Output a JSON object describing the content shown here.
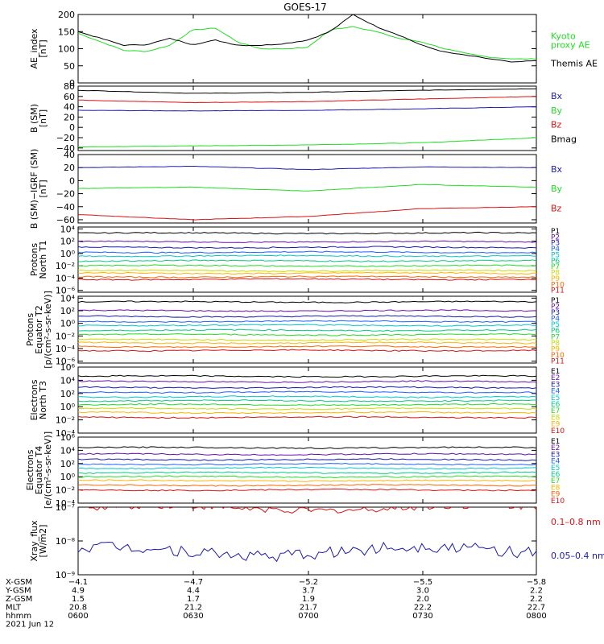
{
  "title": "GOES-17",
  "chart_data": [
    {
      "type": "line",
      "ylabel": "AE_index\n[nT]",
      "ylim": [
        0,
        200
      ],
      "yticks": [
        {
          "v": 0,
          "t": "0"
        },
        {
          "v": 50,
          "t": "50"
        },
        {
          "v": 100,
          "t": "100"
        },
        {
          "v": 150,
          "t": "150"
        },
        {
          "v": 200,
          "t": "200"
        }
      ],
      "series": [
        {
          "name": "Kyoto\nproxy AE",
          "color": "#22dd22",
          "x": [
            0,
            0.05,
            0.1,
            0.15,
            0.2,
            0.25,
            0.3,
            0.35,
            0.4,
            0.45,
            0.5,
            0.55,
            0.6,
            0.65,
            0.7,
            0.75,
            0.8,
            0.85,
            0.9,
            0.95,
            1.0
          ],
          "values": [
            145,
            120,
            95,
            92,
            110,
            155,
            160,
            118,
            100,
            100,
            103,
            155,
            165,
            150,
            130,
            120,
            100,
            85,
            75,
            70,
            70
          ]
        },
        {
          "name": "Themis AE",
          "color": "#000000",
          "x": [
            0,
            0.05,
            0.1,
            0.15,
            0.2,
            0.25,
            0.3,
            0.35,
            0.4,
            0.45,
            0.5,
            0.55,
            0.6,
            0.65,
            0.7,
            0.75,
            0.8,
            0.85,
            0.9,
            0.95,
            1.0
          ],
          "values": [
            150,
            130,
            110,
            112,
            130,
            112,
            125,
            110,
            110,
            115,
            125,
            150,
            200,
            165,
            140,
            110,
            90,
            80,
            70,
            60,
            66
          ]
        }
      ]
    },
    {
      "type": "line",
      "ylabel": "B (SM)\n[nT]",
      "ylim": [
        -45,
        80
      ],
      "yticks": [
        {
          "v": -40,
          "t": "−40"
        },
        {
          "v": -20,
          "t": "−20"
        },
        {
          "v": 0,
          "t": "0"
        },
        {
          "v": 20,
          "t": "20"
        },
        {
          "v": 40,
          "t": "40"
        },
        {
          "v": 60,
          "t": "60"
        },
        {
          "v": 80,
          "t": "80"
        }
      ],
      "series": [
        {
          "name": "Bx",
          "color": "#1a1ab0",
          "x": [
            0,
            0.25,
            0.5,
            0.75,
            1.0
          ],
          "values": [
            33,
            32,
            33,
            36,
            40
          ]
        },
        {
          "name": "By",
          "color": "#22dd22",
          "x": [
            0,
            0.25,
            0.5,
            0.75,
            1.0
          ],
          "values": [
            -38,
            -36,
            -34,
            -30,
            -20
          ]
        },
        {
          "name": "Bz",
          "color": "#dd1111",
          "x": [
            0,
            0.25,
            0.5,
            0.75,
            1.0
          ],
          "values": [
            53,
            48,
            50,
            55,
            60
          ]
        },
        {
          "name": "Bmag",
          "color": "#000000",
          "x": [
            0,
            0.25,
            0.5,
            0.75,
            1.0
          ],
          "values": [
            72,
            66,
            68,
            72,
            75
          ]
        }
      ]
    },
    {
      "type": "line",
      "ylabel": "B (SM)−IGRF (SM)\n[nT]",
      "ylim": [
        -65,
        40
      ],
      "yticks": [
        {
          "v": -60,
          "t": "−60"
        },
        {
          "v": -40,
          "t": "−40"
        },
        {
          "v": -20,
          "t": "−20"
        },
        {
          "v": 0,
          "t": "0"
        },
        {
          "v": 20,
          "t": "20"
        },
        {
          "v": 40,
          "t": "40"
        }
      ],
      "series": [
        {
          "name": "Bx",
          "color": "#1a1ab0",
          "x": [
            0,
            0.25,
            0.5,
            0.75,
            1.0
          ],
          "values": [
            20,
            22,
            17,
            21,
            20
          ]
        },
        {
          "name": "By",
          "color": "#22dd22",
          "x": [
            0,
            0.25,
            0.5,
            0.75,
            1.0
          ],
          "values": [
            -12,
            -10,
            -16,
            -6,
            -10
          ]
        },
        {
          "name": "Bz",
          "color": "#dd1111",
          "x": [
            0,
            0.25,
            0.5,
            0.75,
            1.0
          ],
          "values": [
            -52,
            -60,
            -55,
            -43,
            -40
          ]
        }
      ]
    },
    {
      "type": "line",
      "log": true,
      "ylabel": "Protons\nNorth T1",
      "ylim": [
        -6.3,
        4.3
      ],
      "yticks": [
        {
          "v": 4,
          "t": "10⁴"
        },
        {
          "v": 2,
          "t": "10²"
        },
        {
          "v": 0,
          "t": "10⁰"
        },
        {
          "v": -2,
          "t": "10⁻²"
        },
        {
          "v": -4,
          "t": "10⁻⁴"
        },
        {
          "v": -6,
          "t": "10⁻⁶"
        }
      ],
      "series": [
        {
          "name": "P1",
          "color": "#000000",
          "level": 3.3
        },
        {
          "name": "P2",
          "color": "#6a0dad",
          "level": 1.9
        },
        {
          "name": "P3",
          "color": "#1a1ab0",
          "level": 1.0
        },
        {
          "name": "P4",
          "color": "#1f5fff",
          "level": 0.2
        },
        {
          "name": "P5",
          "color": "#00c8c8",
          "level": -0.4
        },
        {
          "name": "P6",
          "color": "#00cc88",
          "level": -1.2
        },
        {
          "name": "P7",
          "color": "#22dd22",
          "level": -2.0
        },
        {
          "name": "P8",
          "color": "#c8dc00",
          "level": -2.8
        },
        {
          "name": "P9",
          "color": "#ffb400",
          "level": -3.2
        },
        {
          "name": "P10",
          "color": "#ff6600",
          "level": -3.8
        },
        {
          "name": "P11",
          "color": "#dd1111",
          "level": -4.2
        }
      ]
    },
    {
      "type": "line",
      "log": true,
      "ylabel": "Protons\nEquator T2\n[p/(cm²-s-sr-keV)]",
      "ylim": [
        -6.3,
        4.3
      ],
      "yticks": [
        {
          "v": 4,
          "t": "10⁴"
        },
        {
          "v": 2,
          "t": "10²"
        },
        {
          "v": 0,
          "t": "10⁰"
        },
        {
          "v": -2,
          "t": "10⁻²"
        },
        {
          "v": -4,
          "t": "10⁻⁴"
        },
        {
          "v": -6,
          "t": "10⁻⁶"
        }
      ],
      "series": [
        {
          "name": "P1",
          "color": "#000000",
          "level": 3.4
        },
        {
          "name": "P2",
          "color": "#6a0dad",
          "level": 2.0
        },
        {
          "name": "P3",
          "color": "#1a1ab0",
          "level": 1.1
        },
        {
          "name": "P4",
          "color": "#1f5fff",
          "level": 0.3
        },
        {
          "name": "P5",
          "color": "#00c8c8",
          "level": -0.3
        },
        {
          "name": "P6",
          "color": "#00cc88",
          "level": -1.1
        },
        {
          "name": "P7",
          "color": "#22dd22",
          "level": -1.8
        },
        {
          "name": "P8",
          "color": "#c8dc00",
          "level": -2.6
        },
        {
          "name": "P9",
          "color": "#ffb400",
          "level": -3.1
        },
        {
          "name": "P10",
          "color": "#ff6600",
          "level": -3.7
        },
        {
          "name": "P11",
          "color": "#dd1111",
          "level": -4.3
        }
      ]
    },
    {
      "type": "line",
      "log": true,
      "ylabel": "Electrons\nNorth T3",
      "ylim": [
        -4,
        6
      ],
      "yticks": [
        {
          "v": 6,
          "t": "10⁶"
        },
        {
          "v": 4,
          "t": "10⁴"
        },
        {
          "v": 2,
          "t": "10²"
        },
        {
          "v": 0,
          "t": "10⁰"
        },
        {
          "v": -2,
          "t": "10⁻²"
        },
        {
          "v": -4,
          "t": "10⁻⁴"
        }
      ],
      "series": [
        {
          "name": "E1",
          "color": "#000000",
          "level": 4.6
        },
        {
          "name": "E2",
          "color": "#6a0dad",
          "level": 3.8
        },
        {
          "name": "E3",
          "color": "#1a1ab0",
          "level": 2.9
        },
        {
          "name": "E4",
          "color": "#1f5fff",
          "level": 2.2
        },
        {
          "name": "E5",
          "color": "#00c8c8",
          "level": 1.5
        },
        {
          "name": "E6",
          "color": "#00cc88",
          "level": 0.9
        },
        {
          "name": "E7",
          "color": "#22dd22",
          "level": 0.3
        },
        {
          "name": "E8",
          "color": "#c8dc00",
          "level": -0.3
        },
        {
          "name": "E9",
          "color": "#ffb400",
          "level": -0.9
        },
        {
          "name": "E10",
          "color": "#dd1111",
          "level": -1.6
        }
      ]
    },
    {
      "type": "line",
      "log": true,
      "ylabel": "Electrons\nEquator T4\n[e/(cm²-s-sr-keV)]",
      "ylim": [
        -4,
        6
      ],
      "yticks": [
        {
          "v": 6,
          "t": "10⁶"
        },
        {
          "v": 4,
          "t": "10⁴"
        },
        {
          "v": 2,
          "t": "10²"
        },
        {
          "v": 0,
          "t": "10⁰"
        },
        {
          "v": -2,
          "t": "10⁻²"
        },
        {
          "v": -4,
          "t": "10⁻⁴"
        }
      ],
      "series": [
        {
          "name": "E1",
          "color": "#000000",
          "level": 4.4
        },
        {
          "name": "E2",
          "color": "#6a0dad",
          "level": 3.4
        },
        {
          "name": "E3",
          "color": "#1a1ab0",
          "level": 2.6
        },
        {
          "name": "E4",
          "color": "#1f5fff",
          "level": 1.9
        },
        {
          "name": "E5",
          "color": "#00c8c8",
          "level": 1.3
        },
        {
          "name": "E6",
          "color": "#00cc88",
          "level": 0.6
        },
        {
          "name": "E7",
          "color": "#22dd22",
          "level": 0.0
        },
        {
          "name": "E8",
          "color": "#ffb400",
          "level": -0.6
        },
        {
          "name": "E9",
          "color": "#ff6600",
          "level": -1.3
        },
        {
          "name": "E10",
          "color": "#dd1111",
          "level": -2.0
        }
      ]
    },
    {
      "type": "line",
      "log": true,
      "ylabel": "Xray_flux\n[W/m2]",
      "ylim": [
        -9,
        -7
      ],
      "yticks": [
        {
          "v": -7,
          "t": "10⁻⁷"
        },
        {
          "v": -8,
          "t": "10⁻⁸"
        },
        {
          "v": -9,
          "t": "10⁻⁹"
        }
      ],
      "series": [
        {
          "name": "0.1–0.8 nm",
          "color": "#dd1111",
          "level": -7.03
        },
        {
          "name": "0.05–0.4 nm",
          "color": "#1a1ab0",
          "level": -8.3
        }
      ]
    }
  ],
  "xaxis": {
    "rows": [
      {
        "label": "X-GSM",
        "values": [
          "−4.1",
          "−4.7",
          "−5.2",
          "−5.5",
          "−5.8"
        ]
      },
      {
        "label": "Y-GSM",
        "values": [
          "4.9",
          "4.4",
          "3.7",
          "3.0",
          "2.2"
        ]
      },
      {
        "label": "Z-GSM",
        "values": [
          "1.5",
          "1.7",
          "1.9",
          "2.0",
          "2.2"
        ]
      },
      {
        "label": "MLT",
        "values": [
          "20.8",
          "21.2",
          "21.7",
          "22.2",
          "22.7"
        ]
      },
      {
        "label": "hhmm",
        "values": [
          "0600",
          "0630",
          "0700",
          "0730",
          "0800"
        ]
      }
    ],
    "date": "2021 Jun 12"
  }
}
